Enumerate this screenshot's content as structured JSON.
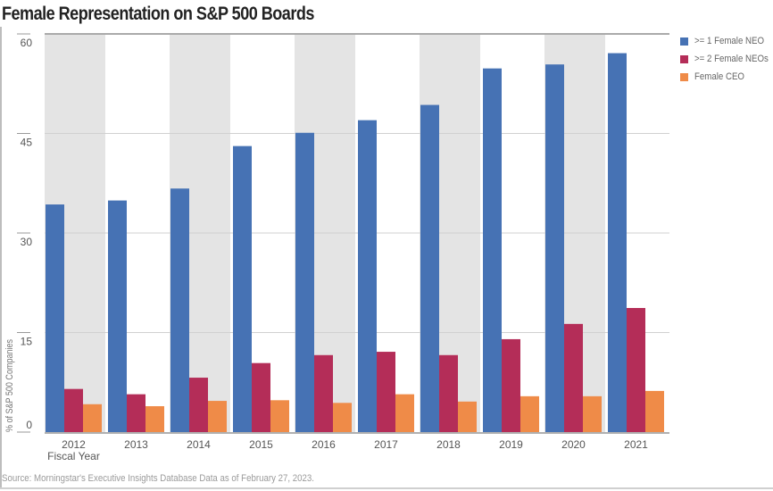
{
  "chart_data": {
    "type": "bar",
    "title": "Female Representation on S&P 500 Boards",
    "xlabel": "Fiscal Year",
    "ylabel": "% of S&P 500 Companies",
    "ylim": [
      0,
      60
    ],
    "yticks": [
      0,
      15,
      30,
      45,
      60
    ],
    "grid": true,
    "legend_position": "top-right",
    "categories": [
      "2012",
      "2013",
      "2014",
      "2015",
      "2016",
      "2017",
      "2018",
      "2019",
      "2020",
      "2021"
    ],
    "series": [
      {
        "name": ">= 1 Female NEO",
        "color": "#4672b4",
        "values": [
          34.3,
          34.9,
          36.7,
          43.1,
          45.1,
          47.0,
          49.3,
          54.8,
          55.4,
          57.1
        ]
      },
      {
        "name": ">= 2 Female NEOs",
        "color": "#b42d58",
        "values": [
          6.5,
          5.7,
          8.2,
          10.4,
          11.6,
          12.1,
          11.6,
          14.0,
          16.3,
          18.7
        ]
      },
      {
        "name": "Female CEO",
        "color": "#ef8b48",
        "values": [
          4.2,
          3.9,
          4.7,
          4.8,
          4.4,
          5.7,
          4.6,
          5.4,
          5.4,
          6.2
        ]
      }
    ],
    "source": "Source: Morningstar's Executive Insights Database  Data as of February 27, 2023."
  }
}
